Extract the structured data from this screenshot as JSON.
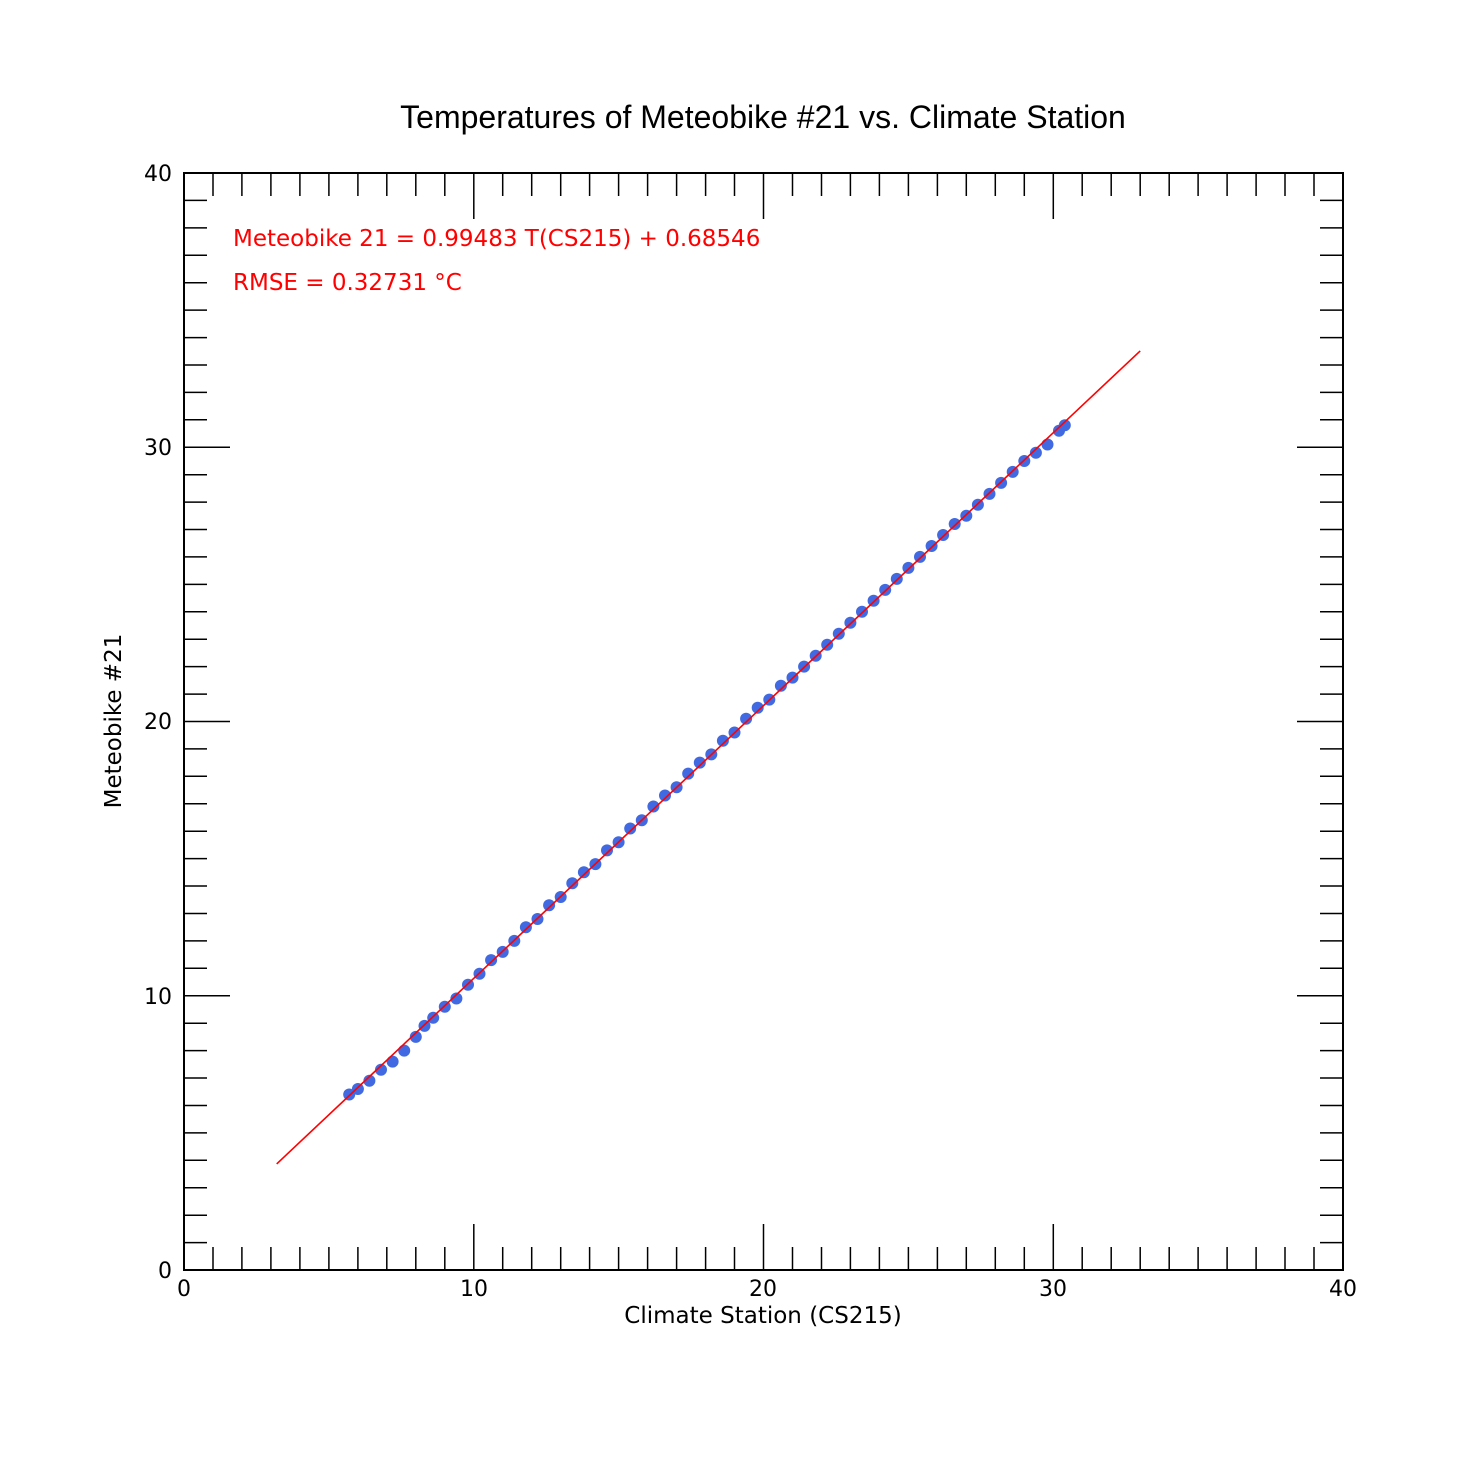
{
  "chart_data": {
    "type": "scatter",
    "title": "Temperatures of Meteobike #21 vs. Climate Station",
    "xlabel": "Climate Station (CS215)",
    "ylabel": "Meteobike #21",
    "xlim": [
      0,
      40
    ],
    "ylim": [
      0,
      40
    ],
    "x_ticks": [
      "0",
      "10",
      "20",
      "30",
      "40"
    ],
    "y_ticks": [
      "0",
      "10",
      "20",
      "30",
      "40"
    ],
    "grid": false,
    "annotations": [
      "Meteobike 21 = 0.99483 T(CS215) + 0.68546",
      "RMSE = 0.32731 °C"
    ],
    "colors": {
      "points": "#4169e1",
      "fit_line": "#ff0000",
      "annotation": "#ff0000"
    },
    "series": [
      {
        "kind": "scatter",
        "points": [
          [
            5.7,
            6.4
          ],
          [
            6.0,
            6.6
          ],
          [
            6.4,
            6.9
          ],
          [
            6.8,
            7.3
          ],
          [
            7.2,
            7.6
          ],
          [
            7.6,
            8.0
          ],
          [
            8.0,
            8.5
          ],
          [
            8.3,
            8.9
          ],
          [
            8.6,
            9.2
          ],
          [
            9.0,
            9.6
          ],
          [
            9.4,
            9.9
          ],
          [
            9.8,
            10.4
          ],
          [
            10.2,
            10.8
          ],
          [
            10.6,
            11.3
          ],
          [
            11.0,
            11.6
          ],
          [
            11.4,
            12.0
          ],
          [
            11.8,
            12.5
          ],
          [
            12.2,
            12.8
          ],
          [
            12.6,
            13.3
          ],
          [
            13.0,
            13.6
          ],
          [
            13.4,
            14.1
          ],
          [
            13.8,
            14.5
          ],
          [
            14.2,
            14.8
          ],
          [
            14.6,
            15.3
          ],
          [
            15.0,
            15.6
          ],
          [
            15.4,
            16.1
          ],
          [
            15.8,
            16.4
          ],
          [
            16.2,
            16.9
          ],
          [
            16.6,
            17.3
          ],
          [
            17.0,
            17.6
          ],
          [
            17.4,
            18.1
          ],
          [
            17.8,
            18.5
          ],
          [
            18.2,
            18.8
          ],
          [
            18.6,
            19.3
          ],
          [
            19.0,
            19.6
          ],
          [
            19.4,
            20.1
          ],
          [
            19.8,
            20.5
          ],
          [
            20.2,
            20.8
          ],
          [
            20.6,
            21.3
          ],
          [
            21.0,
            21.6
          ],
          [
            21.4,
            22.0
          ],
          [
            21.8,
            22.4
          ],
          [
            22.2,
            22.8
          ],
          [
            22.6,
            23.2
          ],
          [
            23.0,
            23.6
          ],
          [
            23.4,
            24.0
          ],
          [
            23.8,
            24.4
          ],
          [
            24.2,
            24.8
          ],
          [
            24.6,
            25.2
          ],
          [
            25.0,
            25.6
          ],
          [
            25.4,
            26.0
          ],
          [
            25.8,
            26.4
          ],
          [
            26.2,
            26.8
          ],
          [
            26.6,
            27.2
          ],
          [
            27.0,
            27.5
          ],
          [
            27.4,
            27.9
          ],
          [
            27.8,
            28.3
          ],
          [
            28.2,
            28.7
          ],
          [
            28.6,
            29.1
          ],
          [
            29.0,
            29.5
          ],
          [
            29.4,
            29.8
          ],
          [
            29.8,
            30.1
          ],
          [
            30.2,
            30.6
          ],
          [
            30.4,
            30.8
          ]
        ]
      },
      {
        "kind": "line",
        "equation": {
          "slope": 0.99483,
          "intercept": 0.68546
        },
        "x": [
          3.2,
          33.0
        ]
      }
    ]
  }
}
